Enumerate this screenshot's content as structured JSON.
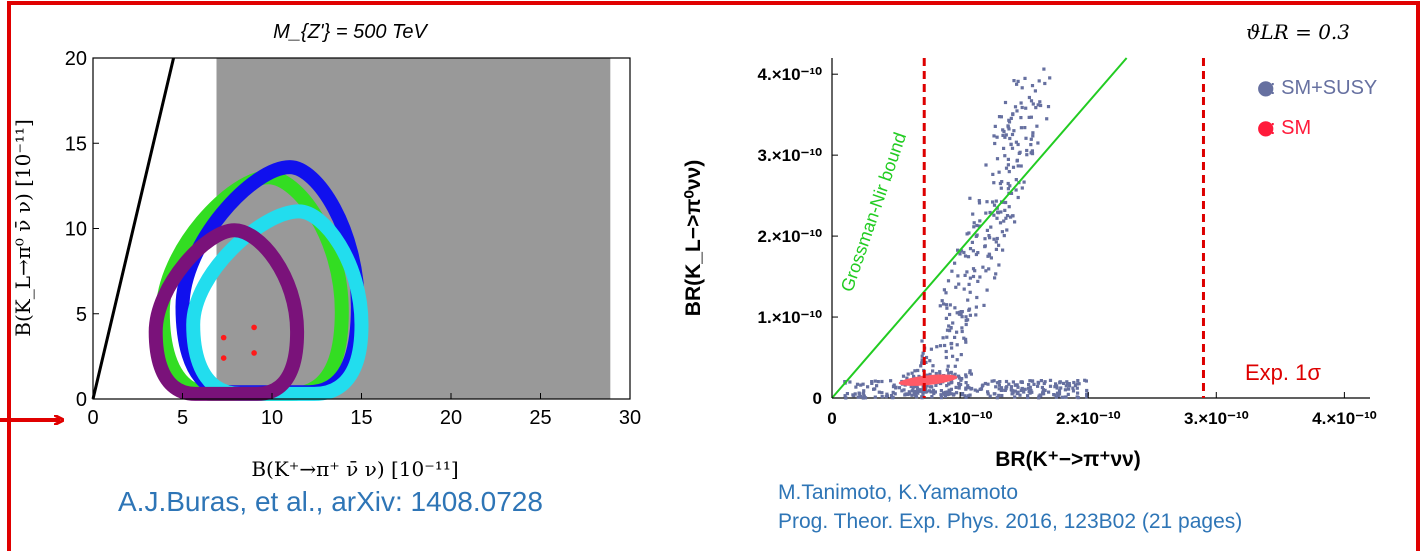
{
  "colors": {
    "frame": "#e00000",
    "gray_region": "#999999",
    "green": "#33dd22",
    "blue": "#1010ee",
    "cyan": "#22ddee",
    "purple": "#7a127a",
    "red_points": "#ff1a1a",
    "susy_points": "#6670a0",
    "sm_ellipse": "#ff5a66",
    "bound_line": "#22cc22",
    "exp_lines": "#dd0000",
    "caption": "#2e75b6"
  },
  "chart_data": [
    {
      "type": "scatter",
      "title": "M_{Z'} = 500 TeV",
      "xlabel": "B(K⁺→π⁺ ν̄ ν) [10⁻¹¹]",
      "ylabel": "B(K_L→π⁰ ν̄ ν) [10⁻¹¹]",
      "xlim": [
        0,
        30
      ],
      "ylim": [
        0,
        20
      ],
      "xticks": [
        0,
        5,
        10,
        15,
        20,
        25,
        30
      ],
      "yticks": [
        0,
        5,
        10,
        15,
        20
      ],
      "grid": false,
      "shaded_region": {
        "x": [
          6.9,
          28.9
        ]
      },
      "boundary_line": {
        "x": [
          0,
          4.5
        ],
        "y": [
          0,
          20
        ]
      },
      "series": [
        {
          "color": "green",
          "ring": {
            "xmin": 3.9,
            "xmax": 13.9,
            "ymin": 0.3,
            "ymax": 13.0,
            "peak_x": 9.8
          }
        },
        {
          "color": "blue",
          "ring": {
            "xmin": 5.0,
            "xmax": 14.8,
            "ymin": 0.4,
            "ymax": 13.6,
            "peak_x": 11.0
          }
        },
        {
          "color": "cyan",
          "ring": {
            "xmin": 5.6,
            "xmax": 15.0,
            "ymin": 0.3,
            "ymax": 11.0,
            "peak_x": 11.5
          }
        },
        {
          "color": "purple",
          "ring": {
            "xmin": 3.5,
            "xmax": 11.4,
            "ymin": 0.3,
            "ymax": 9.9,
            "peak_x": 7.9
          }
        }
      ],
      "points": {
        "x": [
          7.3,
          9.0,
          7.3,
          9.0
        ],
        "y": [
          3.6,
          4.2,
          2.4,
          2.7
        ]
      }
    },
    {
      "type": "scatter",
      "title": "ϑLR = 0.3",
      "xlabel": "BR(K⁺−>π⁺νν)",
      "ylabel": "BR(K_L−>π⁰νν)",
      "xlim": [
        0,
        4.2e-10
      ],
      "ylim": [
        0,
        4.2e-10
      ],
      "xticks": [
        {
          "value": 0,
          "label": "0"
        },
        {
          "value": 1e-10,
          "label": "1.×10⁻¹⁰"
        },
        {
          "value": 2e-10,
          "label": "2.×10⁻¹⁰"
        },
        {
          "value": 3e-10,
          "label": "3.×10⁻¹⁰"
        },
        {
          "value": 4e-10,
          "label": "4.×10⁻¹⁰"
        }
      ],
      "yticks": [
        {
          "value": 0,
          "label": "0"
        },
        {
          "value": 1e-10,
          "label": "1.×10⁻¹⁰"
        },
        {
          "value": 2e-10,
          "label": "2.×10⁻¹⁰"
        },
        {
          "value": 3e-10,
          "label": "3.×10⁻¹⁰"
        },
        {
          "value": 4e-10,
          "label": "4.×10⁻¹⁰"
        }
      ],
      "grid": false,
      "legend_position": "top-right",
      "legend": [
        {
          "marker": "●",
          "label": ": SM+SUSY",
          "color": "susy_points"
        },
        {
          "marker": "●",
          "label": ": SM",
          "color": "sm_ellipse"
        }
      ],
      "bound_line": {
        "label": "Grossman-Nir bound",
        "x": [
          0,
          2.3e-10
        ],
        "y": [
          0,
          4.2e-10
        ]
      },
      "exp_lines": {
        "x": [
          7.2e-11,
          2.9e-10
        ],
        "label": "Exp. 1σ"
      },
      "sm_region": {
        "x_center": 7.5e-11,
        "y_center": 2.2e-11,
        "x_halfwidth": 2.3e-11,
        "y_halfwidth": 6e-12
      },
      "points_description": "dense cluster near x=0.7e-10…1.1e-10 rising to (1.6e-10, 3.9e-10); horizontal band y≈0…0.3e-10"
    }
  ],
  "captions": {
    "left": "A.J.Buras, et al., arXiv: 1408.0728",
    "right_line1": "M.Tanimoto, K.Yamamoto",
    "right_line2": "Prog. Theor. Exp. Phys. 2016, 123B02 (21 pages)"
  }
}
